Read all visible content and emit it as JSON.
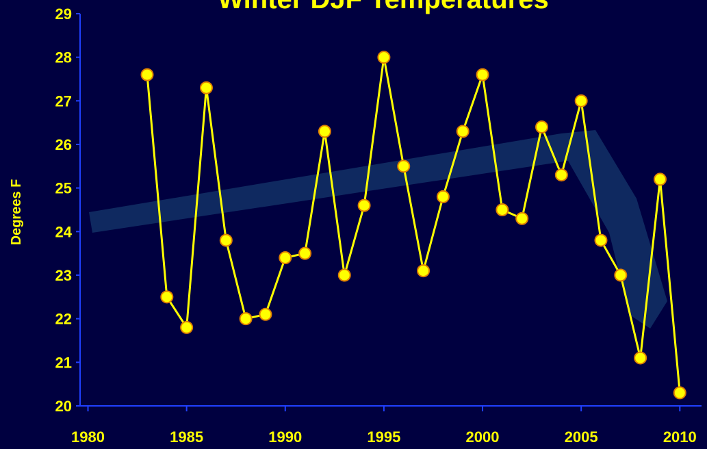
{
  "chart_data": {
    "type": "line",
    "title": "Winter DJF Temperatures",
    "y_label": "Degrees F",
    "x": [
      1983,
      1984,
      1985,
      1986,
      1987,
      1988,
      1989,
      1990,
      1991,
      1992,
      1993,
      1994,
      1995,
      1996,
      1997,
      1998,
      1999,
      2000,
      2001,
      2002,
      2003,
      2004,
      2005,
      2006,
      2007,
      2008,
      2009,
      2010
    ],
    "series": [
      {
        "color": "#ffff00",
        "values": [
          27.6,
          22.5,
          21.8,
          27.3,
          23.8,
          22.0,
          22.1,
          23.4,
          23.5,
          26.3,
          23.0,
          24.6,
          28.0,
          25.5,
          23.1,
          24.8,
          26.3,
          27.6,
          24.5,
          24.3,
          26.4,
          25.3,
          27.0,
          23.8,
          23.0,
          21.1,
          25.2,
          20.3
        ]
      }
    ],
    "xlim": [
      1979.6,
      2011.1
    ],
    "xticks": [
      1980,
      1985,
      1990,
      1995,
      2000,
      2005,
      2010
    ],
    "ylim": [
      20,
      29
    ],
    "yticks": [
      20,
      21,
      22,
      23,
      24,
      25,
      26,
      27,
      28,
      29
    ]
  }
}
